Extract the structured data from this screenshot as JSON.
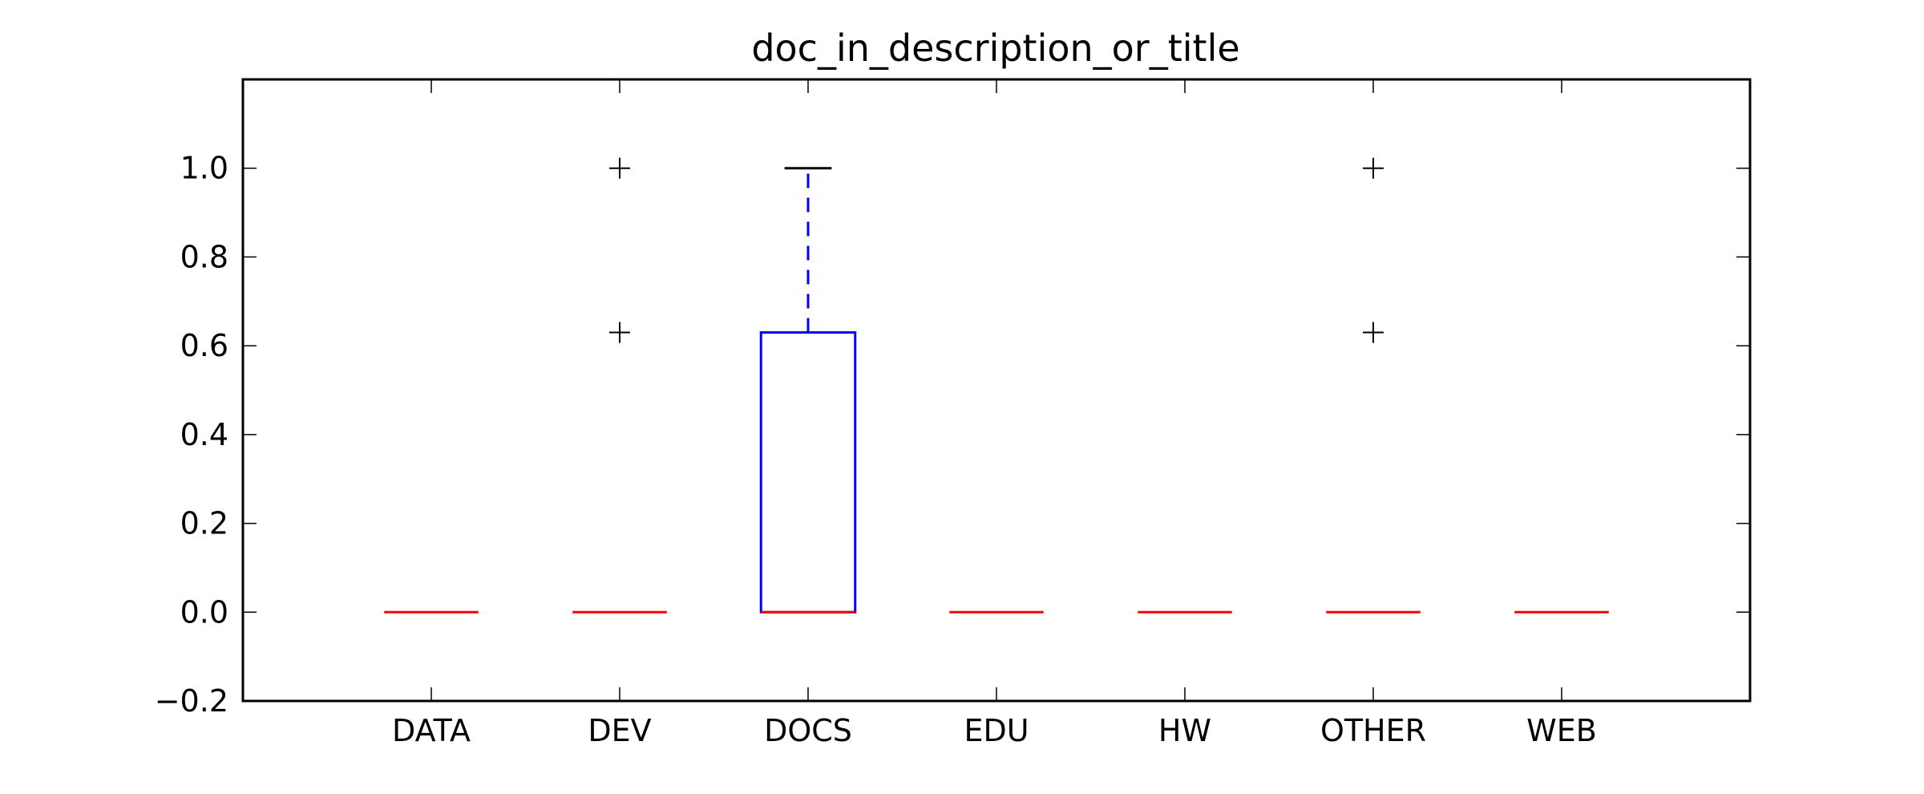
{
  "chart_data": {
    "type": "box",
    "title": "doc_in_description_or_title",
    "xlabel": "",
    "ylabel": "",
    "categories": [
      "DATA",
      "DEV",
      "DOCS",
      "EDU",
      "HW",
      "OTHER",
      "WEB"
    ],
    "ylim": [
      -0.2,
      1.2
    ],
    "yticks": [
      -0.2,
      0.0,
      0.2,
      0.4,
      0.6,
      0.8,
      1.0
    ],
    "ytick_labels": [
      "−0.2",
      "0.0",
      "0.2",
      "0.4",
      "0.6",
      "0.8",
      "1.0"
    ],
    "grid": false,
    "boxes": [
      {
        "category": "DATA",
        "q1": 0.0,
        "median": 0.0,
        "q3": 0.0,
        "whisker_low": 0.0,
        "whisker_high": 0.0,
        "outliers": []
      },
      {
        "category": "DEV",
        "q1": 0.0,
        "median": 0.0,
        "q3": 0.0,
        "whisker_low": 0.0,
        "whisker_high": 0.0,
        "outliers": [
          0.63,
          1.0
        ]
      },
      {
        "category": "DOCS",
        "q1": 0.0,
        "median": 0.0,
        "q3": 0.63,
        "whisker_low": 0.0,
        "whisker_high": 1.0,
        "outliers": []
      },
      {
        "category": "EDU",
        "q1": 0.0,
        "median": 0.0,
        "q3": 0.0,
        "whisker_low": 0.0,
        "whisker_high": 0.0,
        "outliers": []
      },
      {
        "category": "HW",
        "q1": 0.0,
        "median": 0.0,
        "q3": 0.0,
        "whisker_low": 0.0,
        "whisker_high": 0.0,
        "outliers": []
      },
      {
        "category": "OTHER",
        "q1": 0.0,
        "median": 0.0,
        "q3": 0.0,
        "whisker_low": 0.0,
        "whisker_high": 0.0,
        "outliers": [
          0.63,
          1.0
        ]
      },
      {
        "category": "WEB",
        "q1": 0.0,
        "median": 0.0,
        "q3": 0.0,
        "whisker_low": 0.0,
        "whisker_high": 0.0,
        "outliers": []
      }
    ],
    "colors": {
      "box": "#0000ff",
      "whisker": "#0000ff",
      "median": "#ff0000",
      "cap": "#000000",
      "outlier": "#000000",
      "axes": "#000000"
    }
  }
}
